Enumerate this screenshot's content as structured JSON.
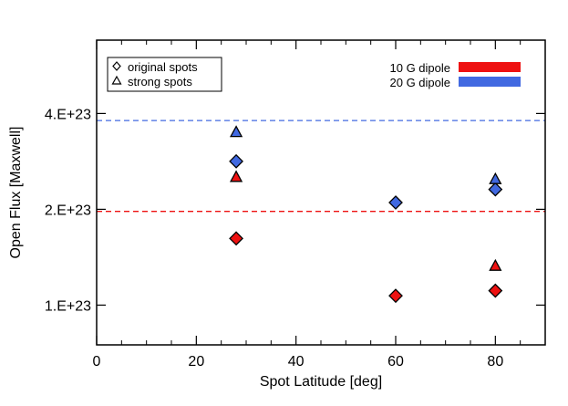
{
  "chart_data": {
    "type": "scatter",
    "title": "",
    "xlabel": "Spot Latitude [deg]",
    "ylabel": "Open Flux [Maxwell]",
    "xlim": [
      0,
      90
    ],
    "ylim": [
      7.5e+22,
      6.8e+23
    ],
    "yscale": "log",
    "x_ticks": [
      0,
      20,
      40,
      60,
      80
    ],
    "x_tick_labels": [
      "0",
      "20",
      "40",
      "60",
      "80"
    ],
    "y_ticks": [
      1e+23,
      2e+23,
      4e+23
    ],
    "y_tick_labels": [
      "1.E+23",
      "2.E+23",
      "4.E+23"
    ],
    "colors": {
      "red": "#ee1111",
      "blue": "#4169e1"
    },
    "series": [
      {
        "name": "original spots, 10 G dipole",
        "marker": "diamond",
        "color": "red",
        "x": [
          28,
          60,
          80
        ],
        "y": [
          1.62e+23,
          1.07e+23,
          1.11e+23
        ]
      },
      {
        "name": "strong spots, 10 G dipole",
        "marker": "triangle",
        "color": "red",
        "x": [
          28,
          80
        ],
        "y": [
          2.53e+23,
          1.33e+23
        ]
      },
      {
        "name": "original spots, 20 G dipole",
        "marker": "diamond",
        "color": "blue",
        "x": [
          28,
          60,
          80
        ],
        "y": [
          2.83e+23,
          2.1e+23,
          2.31e+23
        ]
      },
      {
        "name": "strong spots, 20 G dipole",
        "marker": "triangle",
        "color": "blue",
        "x": [
          28,
          80
        ],
        "y": [
          3.5e+23,
          2.49e+23
        ]
      }
    ],
    "reference_lines": [
      {
        "name": "10 G dipole",
        "color": "red",
        "y": 1.97e+23
      },
      {
        "name": "20 G dipole",
        "color": "blue",
        "y": 3.8e+23
      }
    ],
    "legend_markers": [
      {
        "marker": "diamond",
        "label": "original spots"
      },
      {
        "marker": "triangle",
        "label": "strong spots"
      }
    ],
    "legend_lines": [
      {
        "label": "10 G dipole",
        "color": "red"
      },
      {
        "label": "20 G dipole",
        "color": "blue"
      }
    ],
    "grid": false,
    "legend_position": "top"
  }
}
